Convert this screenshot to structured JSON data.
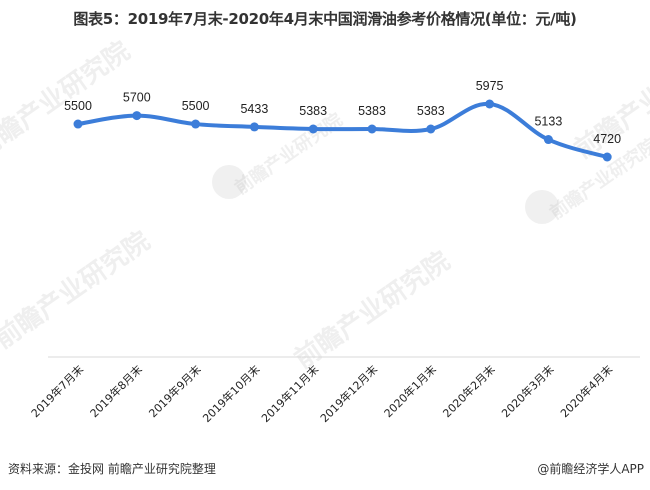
{
  "title": "图表5：2019年7月末-2020年4月末中国润滑油参考价格情况(单位：元/吨)",
  "footer": {
    "source": "资料来源：金投网 前瞻产业研究院整理",
    "credit": "@前瞻经济学人APP"
  },
  "watermark": {
    "text": "前瞻产业研究院"
  },
  "colors": {
    "line": "#3C7DD9",
    "axis": "#D9D9D9"
  },
  "chart_data": {
    "type": "line",
    "title": "图表5：2019年7月末-2020年4月末中国润滑油参考价格情况(单位：元/吨)",
    "xlabel": "",
    "ylabel": "元/吨",
    "categories": [
      "2019年7月末",
      "2019年8月末",
      "2019年9月末",
      "2019年10月末",
      "2019年11月末",
      "2019年12月末",
      "2020年1月末",
      "2020年2月末",
      "2020年3月末",
      "2020年4月末"
    ],
    "series": [
      {
        "name": "中国润滑油参考价格",
        "values": [
          5500,
          5700,
          5500,
          5433,
          5383,
          5383,
          5383,
          5975,
          5133,
          4720
        ]
      }
    ],
    "data_labels": [
      "5500",
      "5700",
      "5500",
      "5433",
      "5383",
      "5383",
      "5383",
      "5975",
      "5133",
      "4720"
    ],
    "grid": false,
    "legend": "none",
    "smooth": true
  }
}
